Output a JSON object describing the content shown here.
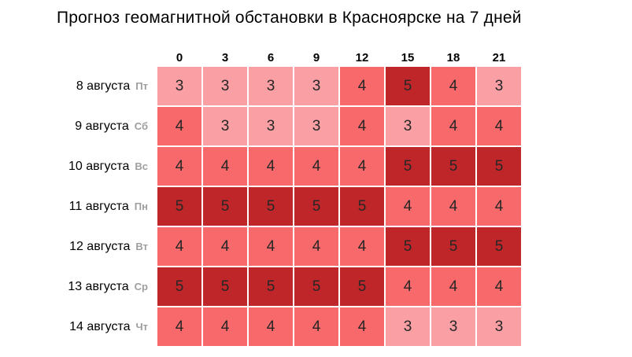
{
  "title": "Прогноз геомагнитной обстановки в Красноярске на 7 дней",
  "chart_data": {
    "type": "heatmap",
    "columns": [
      "0",
      "3",
      "6",
      "9",
      "12",
      "15",
      "18",
      "21"
    ],
    "rows": [
      {
        "date": "8 августа",
        "weekday": "Пт",
        "values": [
          3,
          3,
          3,
          3,
          4,
          5,
          4,
          3
        ]
      },
      {
        "date": "9 августа",
        "weekday": "Сб",
        "values": [
          4,
          3,
          3,
          3,
          4,
          3,
          4,
          4
        ]
      },
      {
        "date": "10 августа",
        "weekday": "Вс",
        "values": [
          4,
          4,
          4,
          4,
          4,
          5,
          5,
          5
        ]
      },
      {
        "date": "11 августа",
        "weekday": "Пн",
        "values": [
          5,
          5,
          5,
          5,
          5,
          4,
          4,
          4
        ]
      },
      {
        "date": "12 августа",
        "weekday": "Вт",
        "values": [
          4,
          4,
          4,
          4,
          4,
          5,
          5,
          5
        ]
      },
      {
        "date": "13 августа",
        "weekday": "Ср",
        "values": [
          5,
          5,
          5,
          5,
          5,
          4,
          4,
          4
        ]
      },
      {
        "date": "14 августа",
        "weekday": "Чт",
        "values": [
          4,
          4,
          4,
          4,
          4,
          3,
          3,
          3
        ]
      }
    ],
    "value_colors": {
      "3": "#FA9FA3",
      "4": "#F8696B",
      "5": "#BE2629"
    },
    "title": "Прогноз геомагнитной обстановки в Красноярске на 7 дней",
    "legend": "off",
    "grid": "off"
  }
}
